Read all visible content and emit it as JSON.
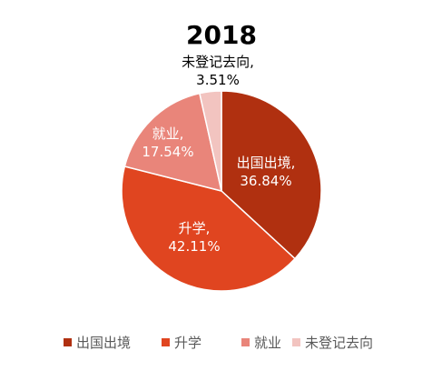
{
  "chart_data": {
    "type": "pie",
    "title": "2018",
    "slices": [
      {
        "name": "出国出境",
        "value": 36.84,
        "value_label": "36.84%",
        "label_name": "出国出境,",
        "color": "#b03010",
        "text_color": "#ffffff"
      },
      {
        "name": "升学",
        "value": 42.11,
        "value_label": "42.11%",
        "label_name": "升学,",
        "color": "#e04520",
        "text_color": "#ffffff"
      },
      {
        "name": "就业",
        "value": 17.54,
        "value_label": "17.54%",
        "label_name": "就业,",
        "color": "#e9857a",
        "text_color": "#ffffff"
      },
      {
        "name": "未登记去向",
        "value": 3.51,
        "value_label": "3.51%",
        "label_name": "未登记去向,",
        "color": "#f2c4c0",
        "text_color": "#000000"
      }
    ],
    "legend_position": "bottom"
  }
}
